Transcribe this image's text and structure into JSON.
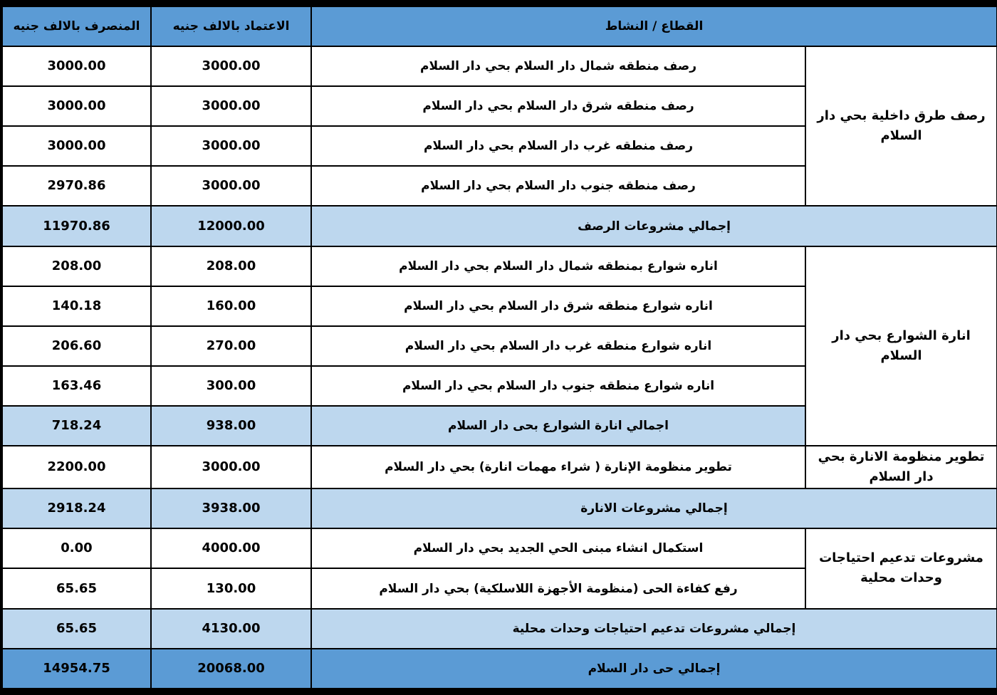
{
  "header": {
    "sector_activity": "القطاع / النشاط",
    "approved": "الاعتماد بالالف جنيه",
    "spent": "المنصرف بالالف جنيه"
  },
  "groups": [
    {
      "sector": "رصف طرق داخلية بحي دار السلام",
      "rows": [
        {
          "activity": "رصف منطقه شمال دار السلام بحي دار السلام",
          "approved": "3000.00",
          "spent": "3000.00"
        },
        {
          "activity": "رصف منطقه شرق دار السلام  بحي دار السلام",
          "approved": "3000.00",
          "spent": "3000.00"
        },
        {
          "activity": "رصف منطقه غرب دار السلام بحي دار السلام",
          "approved": "3000.00",
          "spent": "3000.00"
        },
        {
          "activity": "رصف منطقه جنوب دار السلام بحي دار السلام",
          "approved": "3000.00",
          "spent": "2970.86"
        }
      ],
      "total": {
        "label": "إجمالي مشروعات الرصف",
        "approved": "12000.00",
        "spent": "11970.86"
      }
    },
    {
      "sector": "انارة الشوارع بحي دار السلام",
      "rows": [
        {
          "activity": "اناره شوارع بمنطقه شمال دار السلام بحي دار السلام",
          "approved": "208.00",
          "spent": "208.00"
        },
        {
          "activity": "اناره شوارع منطقه شرق دار السلام بحي دار السلام",
          "approved": "160.00",
          "spent": "140.18"
        },
        {
          "activity": "اناره شوارع منطقه غرب دار السلام بحي دار السلام",
          "approved": "270.00",
          "spent": "206.60"
        },
        {
          "activity": "اناره شوارع منطقه جنوب دار السلام بحي دار السلام",
          "approved": "300.00",
          "spent": "163.46"
        }
      ],
      "total": {
        "label": "اجمالي انارة الشوارع بحى دار السلام",
        "approved": "938.00",
        "spent": "718.24"
      }
    },
    {
      "sector": "تطوير منظومة الانارة بحي دار السلام",
      "rows": [
        {
          "activity": "تطوير منظومة الإنارة  ( شراء مهمات انارة) بحي دار السلام",
          "approved": "3000.00",
          "spent": "2200.00"
        }
      ],
      "total": {
        "label": "إجمالي مشروعات الانارة",
        "approved": "3938.00",
        "spent": "2918.24"
      }
    },
    {
      "sector": "مشروعات تدعيم احتياجات وحدات محلية",
      "rows": [
        {
          "activity": "استكمال انشاء مبنى الحي الجديد بحي دار السلام",
          "approved": "4000.00",
          "spent": "0.00"
        },
        {
          "activity": "رفع كفاءة الحى (منظومة الأجهزة اللاسلكية) بحي دار السلام",
          "approved": "130.00",
          "spent": "65.65"
        }
      ],
      "total": {
        "label": "إجمالي مشروعات تدعيم احتياجات وحدات محلية",
        "approved": "4130.00",
        "spent": "65.65"
      }
    }
  ],
  "grand_total": {
    "label": "إجمالي حى دار السلام",
    "approved": "20068.00",
    "spent": "14954.75"
  },
  "colors": {
    "header": "#5b9bd5",
    "subtotal": "#bdd7ee",
    "border": "#000000"
  }
}
